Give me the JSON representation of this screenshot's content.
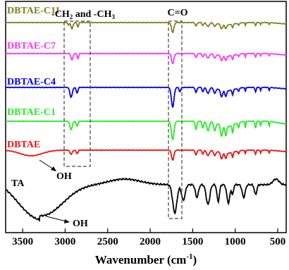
{
  "chart_data": {
    "type": "line",
    "xlabel": "Wavenumber (cm⁻¹)",
    "xlabel_main": "Wavenumber (cm",
    "xlabel_sup": "-1",
    "xlabel_tail": ")",
    "xlim": [
      3700,
      400
    ],
    "x_ticks": [
      3500,
      3000,
      2500,
      2000,
      1500,
      1000,
      500
    ],
    "x_tick_labels": [
      "3500",
      "3000",
      "2500",
      "2000",
      "1500",
      "1000",
      "500"
    ],
    "y_ticks_shown": false,
    "grid": false,
    "legend": "none",
    "series": [
      {
        "name": "DBTAE-C11",
        "color": "#808020"
      },
      {
        "name": "DBTAE-C7",
        "color": "#ff33ff"
      },
      {
        "name": "DBTAE-C4",
        "color": "#0000ee"
      },
      {
        "name": "DBTAE-C1",
        "color": "#22ee22"
      },
      {
        "name": "DBTAE",
        "color": "#ee1111"
      },
      {
        "name": "TA",
        "color": "#000000"
      }
    ],
    "annotations": {
      "ch_box": "-CH₂ and -CH₃",
      "ch_box_main": "-CH",
      "ch_box_sub1": "2",
      "ch_box_mid": " and -CH",
      "ch_box_sub2": "3",
      "co_box": "C=O",
      "oh_dbtae": "OH",
      "oh_ta": "OH"
    }
  }
}
